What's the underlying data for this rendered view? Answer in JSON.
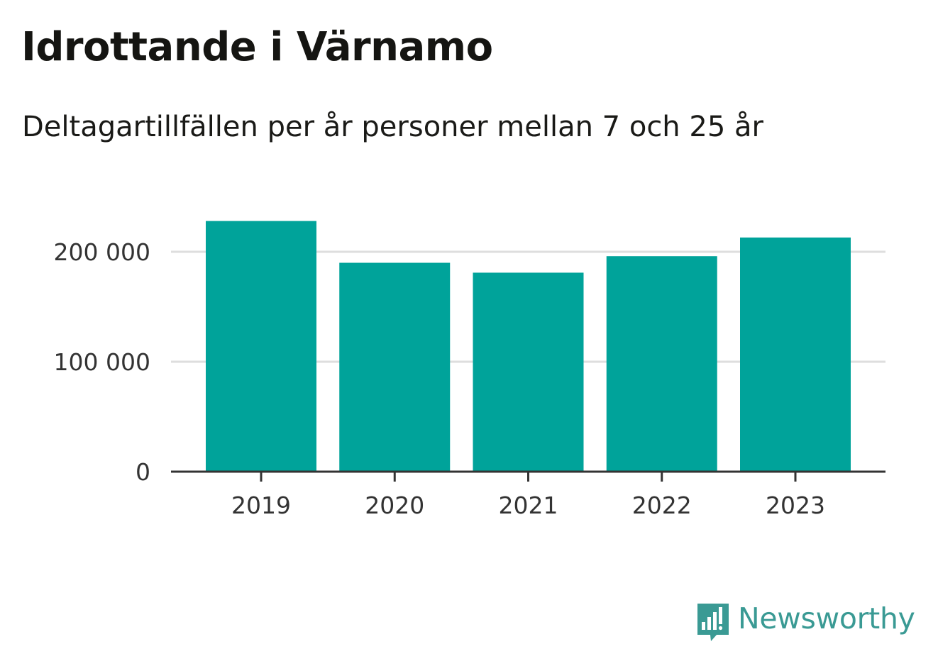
{
  "header": {
    "title": "Idrottande i Värnamo",
    "subtitle": "Deltagartillfällen per år personer mellan 7 och 25 år"
  },
  "brand": {
    "name": "Newsworthy",
    "icon": "newsworthy-logo-icon",
    "color": "#3a9a94"
  },
  "chart_data": {
    "type": "bar",
    "title": "Idrottande i Värnamo",
    "subtitle": "Deltagartillfällen per år personer mellan 7 och 25 år",
    "xlabel": "",
    "ylabel": "",
    "categories": [
      "2019",
      "2020",
      "2021",
      "2022",
      "2023"
    ],
    "values": [
      228000,
      190000,
      181000,
      196000,
      213000
    ],
    "ylim": [
      0,
      240000
    ],
    "yticks": [
      0,
      100000,
      200000
    ],
    "ytick_labels": [
      "0",
      "100 000",
      "200 000"
    ],
    "grid": true,
    "legend": "none",
    "bar_color": "#00a39a",
    "grid_color": "#dedede",
    "axis_color": "#333333"
  }
}
